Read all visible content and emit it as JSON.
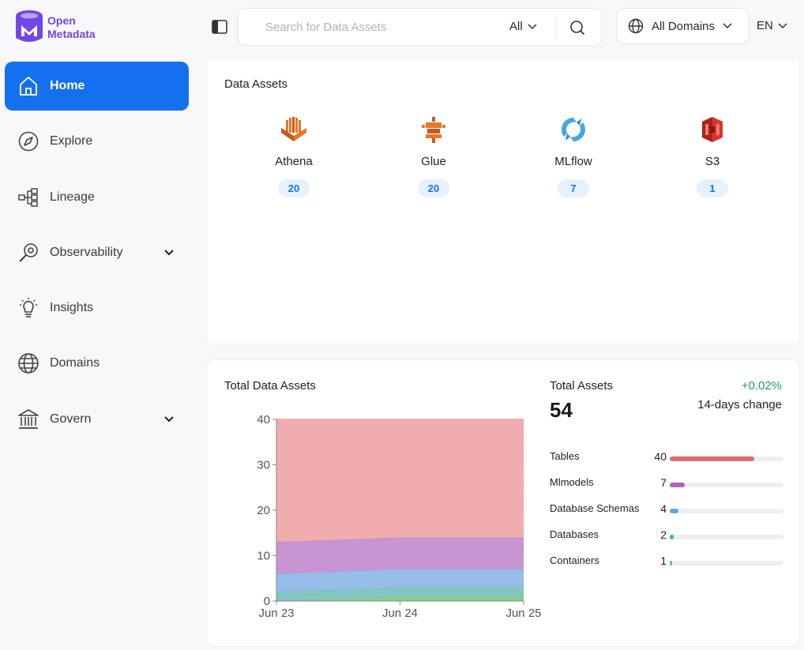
{
  "app": {
    "logo_line1": "Open",
    "logo_line2": "Metadata"
  },
  "search": {
    "placeholder": "Search for Data Assets",
    "filter": "All"
  },
  "domain_select": {
    "label": "All Domains"
  },
  "language": {
    "label": "EN"
  },
  "nav": {
    "items": [
      {
        "label": "Home"
      },
      {
        "label": "Explore"
      },
      {
        "label": "Lineage"
      },
      {
        "label": "Observability"
      },
      {
        "label": "Insights"
      },
      {
        "label": "Domains"
      },
      {
        "label": "Govern"
      }
    ]
  },
  "data_assets": {
    "title": "Data Assets",
    "items": [
      {
        "name": "Athena",
        "count": "20",
        "icon": "athena-icon"
      },
      {
        "name": "Glue",
        "count": "20",
        "icon": "glue-icon"
      },
      {
        "name": "MLflow",
        "count": "7",
        "icon": "mlflow-icon"
      },
      {
        "name": "S3",
        "count": "1",
        "icon": "s3-icon"
      }
    ]
  },
  "total_assets": {
    "title": "Total Data Assets",
    "summary_label": "Total Assets",
    "total": "54",
    "change": "+0.02%",
    "change_label": "14-days change",
    "breakdown": [
      {
        "label": "Tables",
        "count": "40",
        "value": 40,
        "color": "#e06b70"
      },
      {
        "label": "Mlmodels",
        "count": "7",
        "value": 7,
        "color": "#b85cc8"
      },
      {
        "label": "Database Schemas",
        "count": "4",
        "value": 4,
        "color": "#5aa9e6"
      },
      {
        "label": "Databases",
        "count": "2",
        "value": 2,
        "color": "#43b3a8"
      },
      {
        "label": "Containers",
        "count": "1",
        "value": 1,
        "color": "#6cc06f"
      }
    ]
  },
  "chart_data": {
    "type": "area",
    "title": "Total Data Assets",
    "categories": [
      "Jun 23",
      "Jun 24",
      "Jun 25"
    ],
    "ylim": [
      0,
      40
    ],
    "yticks": [
      "0",
      "10",
      "20",
      "30",
      "40"
    ],
    "series": [
      {
        "name": "Tables",
        "values": [
          40,
          40,
          40
        ],
        "color": "#f0a9aa"
      },
      {
        "name": "Mlmodels",
        "values": [
          7,
          7,
          7
        ],
        "color": "#c58fd0"
      },
      {
        "name": "Database Schemas",
        "values": [
          4,
          4,
          4
        ],
        "color": "#8fb9e6"
      },
      {
        "name": "Databases",
        "values": [
          2,
          2,
          2
        ],
        "color": "#7cc2bd"
      },
      {
        "name": "Containers",
        "values": [
          0,
          1,
          1
        ],
        "color": "#86c88b"
      }
    ]
  }
}
